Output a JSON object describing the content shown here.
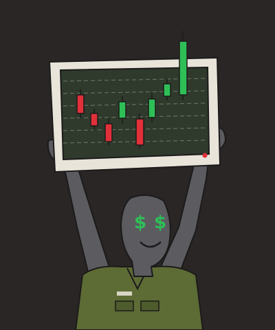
{
  "eyes": [
    "$",
    "$"
  ]
}
